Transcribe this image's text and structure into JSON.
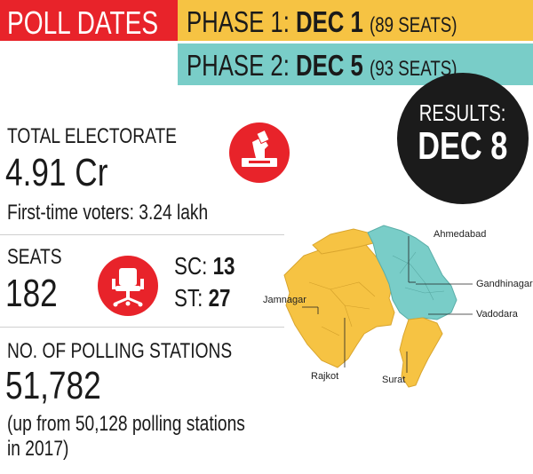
{
  "header": {
    "poll_dates": "POLL DATES",
    "phase1": {
      "label": "PHASE 1:",
      "date": "DEC 1",
      "seats": "(89 SEATS)"
    },
    "phase2": {
      "label": "PHASE 2:",
      "date": "DEC 5",
      "seats": "(93 SEATS)"
    },
    "results": {
      "label": "RESULTS:",
      "date": "DEC 8"
    }
  },
  "electorate": {
    "label": "TOTAL ELECTORATE",
    "value": "4.91 Cr",
    "first_time": "First-time voters: 3.24 lakh",
    "icon": "ballot-voting-icon"
  },
  "seats": {
    "label": "SEATS",
    "value": "182",
    "icon": "office-chair-icon",
    "sc_label": "SC:",
    "sc_value": "13",
    "st_label": "ST:",
    "st_value": "27"
  },
  "polling": {
    "label": "NO. OF POLLING STATIONS",
    "value": "51,782",
    "note_line1": "(up from 50,128 polling stations",
    "note_line2": "in 2017)"
  },
  "map": {
    "cities": [
      "Ahmedabad",
      "Gandhinagar",
      "Vadodara",
      "Jamnagar",
      "Rajkot",
      "Surat"
    ]
  },
  "colors": {
    "red": "#e8232a",
    "yellow": "#f6c343",
    "teal": "#79cdc8",
    "dark": "#1b1b1b"
  }
}
